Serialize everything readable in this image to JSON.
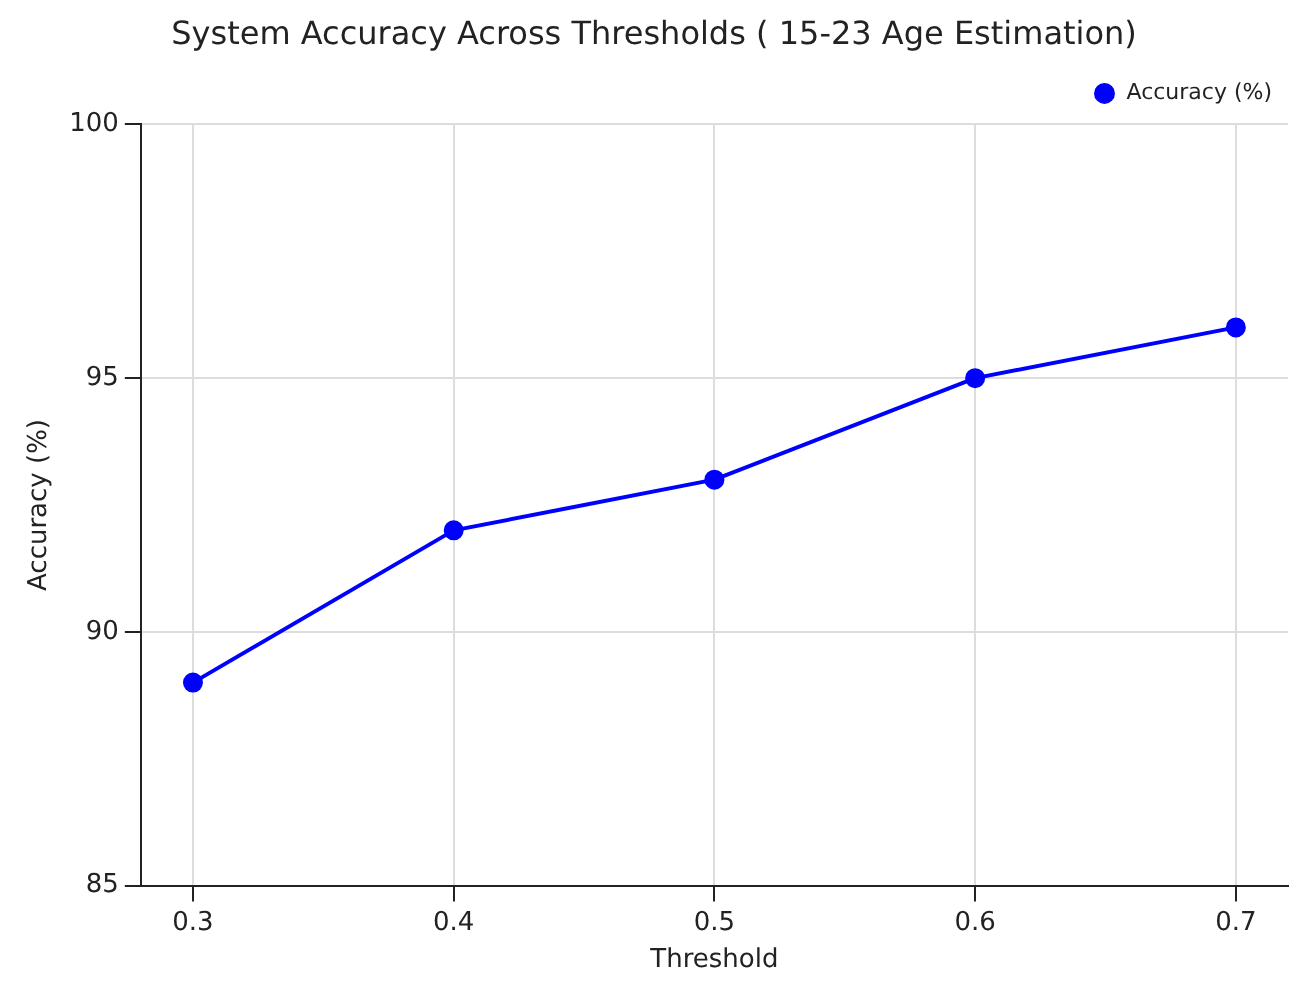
{
  "chart_data": {
    "type": "line",
    "title": "System Accuracy Across Thresholds ( 15-23 Age Estimation)",
    "xlabel": "Threshold",
    "ylabel": "Accuracy (%)",
    "x": [
      0.3,
      0.4,
      0.5,
      0.6,
      0.7
    ],
    "series": [
      {
        "name": "Accuracy (%)",
        "color": "#0000ff",
        "values": [
          89,
          92,
          93,
          95,
          96
        ]
      }
    ],
    "xlim": [
      0.28,
      0.72
    ],
    "xticks": [
      0.3,
      0.4,
      0.5,
      0.6,
      0.7
    ],
    "ylim": [
      85,
      100
    ],
    "yticks": [
      85,
      90,
      95,
      100
    ],
    "grid": true,
    "legend": "top right",
    "marker": "circle",
    "line_style": "solid"
  }
}
